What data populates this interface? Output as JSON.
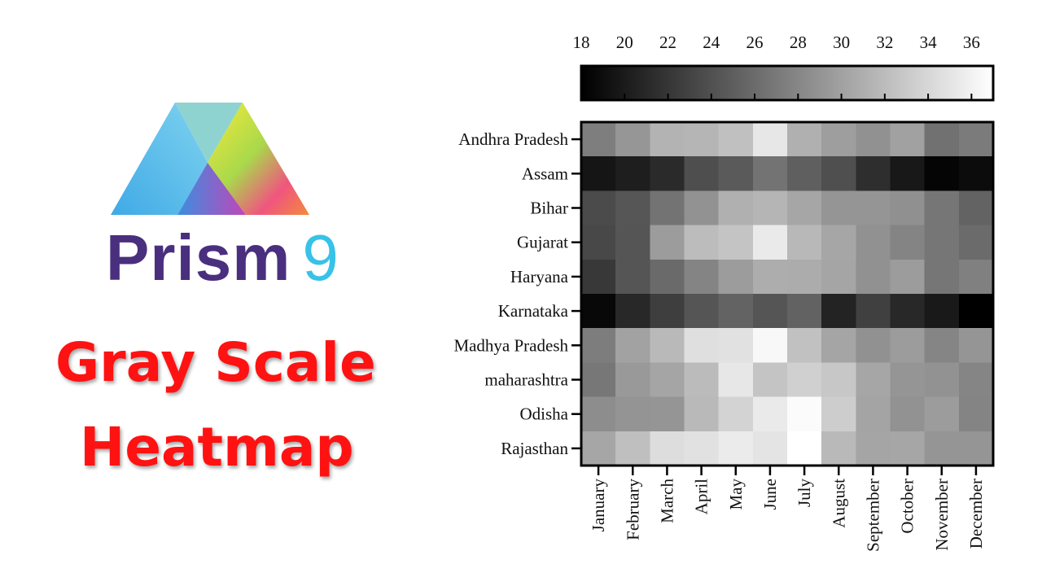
{
  "brand": {
    "name": "Prism",
    "version": "9"
  },
  "headline": {
    "line1": "Gray Scale",
    "line2": "Heatmap"
  },
  "colors": {
    "headline": "#ff1212",
    "brand_text": "#4a2f7f",
    "version_text": "#39c2e8",
    "scale_low": "#000000",
    "scale_high": "#ffffff"
  },
  "chart_data": {
    "type": "heatmap",
    "title": "",
    "xlabel": "",
    "ylabel": "",
    "colorscale": "gray",
    "scale_range": [
      18,
      37
    ],
    "colorbar_ticks": [
      18,
      20,
      22,
      24,
      26,
      28,
      30,
      32,
      34,
      36
    ],
    "colorbar_position": "top",
    "rows": [
      "Andhra Pradesh",
      "Assam",
      "Bihar",
      "Gujarat",
      "Haryana",
      "Karnataka",
      "Madhya Pradesh",
      "maharashtra",
      "Odisha",
      "Rajasthan"
    ],
    "columns": [
      "January",
      "February",
      "March",
      "April",
      "May",
      "June",
      "July",
      "August",
      "September",
      "October",
      "November",
      "December"
    ],
    "values": [
      [
        27.4,
        29.2,
        31.3,
        31.5,
        32.3,
        35.2,
        31.1,
        29.8,
        28.8,
        30.0,
        26.4,
        27.2
      ],
      [
        19.6,
        20.2,
        21.1,
        23.8,
        24.7,
        26.6,
        25.1,
        23.9,
        21.4,
        19.8,
        18.4,
        18.9
      ],
      [
        23.6,
        24.4,
        26.6,
        28.9,
        31.1,
        31.5,
        30.4,
        29.1,
        29.1,
        28.7,
        26.8,
        25.4
      ],
      [
        23.4,
        24.3,
        29.6,
        32.0,
        32.6,
        35.4,
        31.7,
        30.4,
        28.8,
        27.8,
        26.8,
        26.0
      ],
      [
        22.2,
        24.3,
        25.9,
        27.8,
        29.6,
        30.9,
        30.8,
        30.3,
        28.8,
        29.6,
        26.8,
        27.5
      ],
      [
        18.6,
        21.0,
        22.6,
        24.3,
        25.4,
        24.3,
        25.3,
        20.6,
        22.8,
        21.0,
        19.9,
        18.0
      ],
      [
        27.3,
        30.1,
        31.8,
        34.6,
        34.8,
        36.5,
        32.4,
        30.3,
        28.8,
        29.6,
        27.9,
        29.1
      ],
      [
        26.9,
        29.4,
        30.3,
        31.9,
        35.2,
        32.6,
        33.5,
        32.8,
        30.4,
        29.1,
        28.9,
        27.9
      ],
      [
        28.5,
        29.0,
        29.1,
        31.8,
        33.7,
        35.4,
        36.7,
        33.3,
        30.2,
        28.9,
        29.6,
        27.8
      ],
      [
        30.4,
        32.2,
        34.5,
        34.8,
        35.5,
        35.0,
        37.0,
        31.8,
        30.3,
        30.4,
        29.1,
        29.1
      ]
    ]
  }
}
